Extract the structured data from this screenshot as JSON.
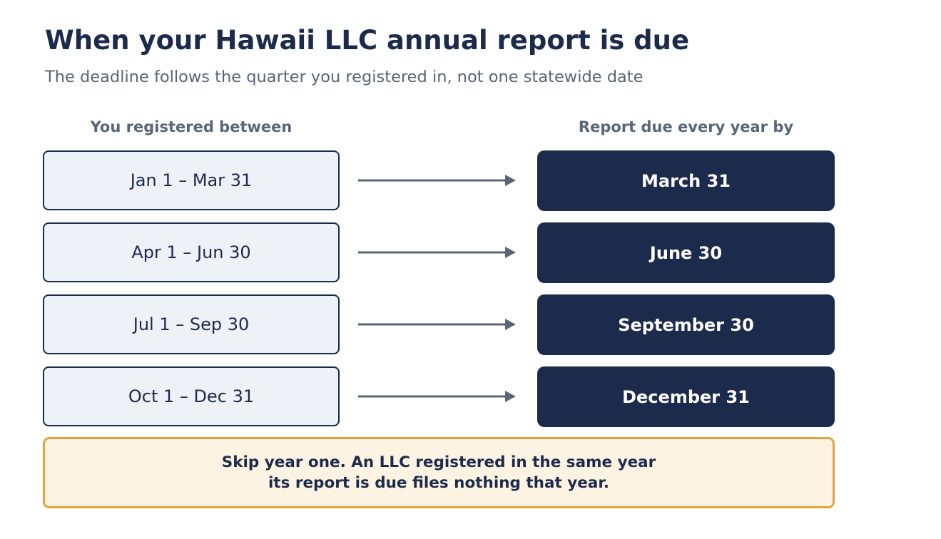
{
  "title": "When your Hawaii LLC annual report is due",
  "subtitle": "The deadline follows the quarter you registered in, not one statewide date",
  "columns": {
    "left_header": "You registered between",
    "right_header": "Report due every year by"
  },
  "rows": [
    {
      "period": "Jan 1 – Mar 31",
      "due": "March 31"
    },
    {
      "period": "Apr 1 – Jun 30",
      "due": "June 30"
    },
    {
      "period": "Jul 1 – Sep 30",
      "due": "September 30"
    },
    {
      "period": "Oct 1 – Dec 31",
      "due": "December 31"
    }
  ],
  "note": {
    "line1": "Skip year one. An LLC registered in the same year",
    "line2": "its report is due files nothing that year."
  },
  "colors": {
    "navy": "#1c2a4b",
    "muted_text": "#5c6478",
    "period_fill": "#eef1f6",
    "arrow": "#5c6478",
    "note_border": "#e5a23c",
    "note_fill": "#fdf3e3"
  },
  "icons": {
    "connector": "right-arrow-icon"
  }
}
